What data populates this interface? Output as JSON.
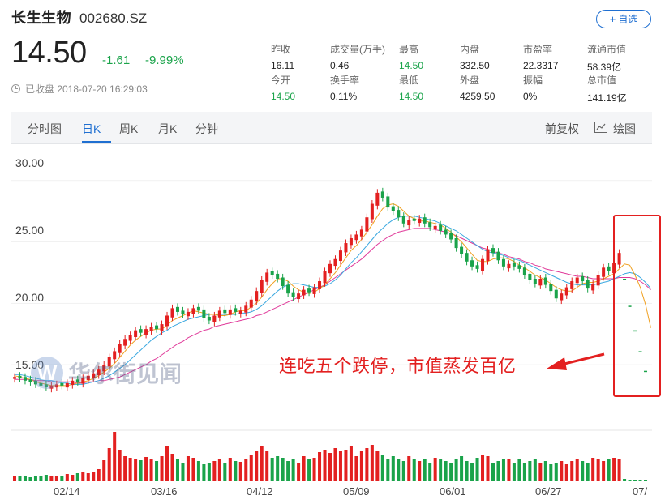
{
  "header": {
    "name": "长生生物",
    "code": "002680.SZ",
    "add_button": "自选",
    "price": "14.50",
    "change": "-1.61",
    "change_pct": "-9.99%",
    "closed_label": "已收盘 2018-07-20 16:29:03"
  },
  "stats": [
    {
      "label": "昨收",
      "value": "16.11",
      "color": "#222222"
    },
    {
      "label": "成交量(万手)",
      "value": "0.46",
      "color": "#222222"
    },
    {
      "label": "最高",
      "value": "14.50",
      "color": "#1aa34a"
    },
    {
      "label": "内盘",
      "value": "332.50",
      "color": "#222222"
    },
    {
      "label": "市盈率",
      "value": "22.3317",
      "color": "#222222"
    },
    {
      "label": "流通市值",
      "value": "58.39亿",
      "color": "#222222"
    },
    {
      "label": "今开",
      "value": "14.50",
      "color": "#1aa34a"
    },
    {
      "label": "换手率",
      "value": "0.11%",
      "color": "#222222"
    },
    {
      "label": "最低",
      "value": "14.50",
      "color": "#1aa34a"
    },
    {
      "label": "外盘",
      "value": "4259.50",
      "color": "#222222"
    },
    {
      "label": "振幅",
      "value": "0%",
      "color": "#222222"
    },
    {
      "label": "总市值",
      "value": "141.19亿",
      "color": "#222222"
    }
  ],
  "tabs": [
    "分时图",
    "日K",
    "周K",
    "月K",
    "分钟"
  ],
  "active_tab": "日K",
  "right_tabs": {
    "adjust": "前复权",
    "draw": "绘图"
  },
  "annotation": "连吃五个跌停，市值蒸发百亿",
  "watermark": {
    "letter": "W",
    "text": "华尔街见闻"
  },
  "colors": {
    "up": "#e32020",
    "down": "#1aa34a",
    "accent": "#1f6fd1",
    "ma5": "#f0a020",
    "ma10": "#3aa8e0",
    "ma20": "#e03a9a"
  },
  "chart_data": {
    "type": "candlestick",
    "y_ticks": [
      "30.00",
      "25.00",
      "20.00",
      "15.00"
    ],
    "x_ticks": [
      "02/14",
      "03/16",
      "04/12",
      "05/09",
      "06/01",
      "06/27",
      "07/"
    ],
    "ylim": [
      12.5,
      31.5
    ],
    "closes": [
      14.0,
      13.9,
      13.7,
      13.6,
      13.4,
      13.3,
      13.2,
      13.3,
      13.4,
      13.3,
      13.5,
      13.7,
      13.6,
      13.9,
      14.1,
      14.3,
      14.6,
      15.0,
      15.6,
      16.1,
      16.7,
      17.1,
      17.4,
      17.8,
      17.6,
      17.9,
      18.1,
      17.9,
      18.3,
      19.0,
      19.6,
      19.3,
      19.1,
      19.3,
      19.6,
      19.4,
      18.8,
      18.6,
      19.0,
      19.4,
      19.2,
      19.5,
      19.3,
      19.4,
      19.8,
      20.3,
      21.0,
      21.9,
      22.5,
      22.3,
      22.0,
      21.4,
      20.8,
      20.5,
      20.8,
      21.1,
      20.9,
      21.3,
      21.8,
      22.6,
      23.2,
      23.6,
      24.3,
      24.9,
      25.3,
      25.6,
      26.0,
      27.0,
      28.1,
      29.0,
      28.6,
      27.8,
      27.5,
      27.0,
      26.5,
      26.8,
      26.7,
      26.9,
      26.5,
      26.2,
      26.3,
      25.9,
      25.6,
      25.2,
      24.5,
      24.0,
      23.4,
      23.0,
      22.8,
      23.6,
      24.4,
      24.1,
      23.5,
      23.0,
      23.2,
      23.0,
      22.8,
      22.3,
      21.9,
      21.6,
      22.0,
      21.5,
      21.0,
      20.4,
      20.8,
      21.3,
      21.8,
      22.1,
      21.8,
      21.2,
      21.6,
      22.3,
      22.9,
      22.6,
      23.3,
      24.1,
      22.0,
      19.8,
      17.8,
      16.1,
      14.5
    ],
    "volumes": [
      6,
      5,
      5,
      4,
      5,
      6,
      7,
      6,
      5,
      6,
      8,
      7,
      9,
      10,
      9,
      11,
      14,
      25,
      40,
      60,
      38,
      30,
      28,
      27,
      25,
      29,
      26,
      24,
      30,
      42,
      33,
      26,
      22,
      30,
      28,
      24,
      20,
      22,
      24,
      26,
      22,
      28,
      24,
      23,
      26,
      32,
      36,
      42,
      36,
      28,
      30,
      28,
      24,
      26,
      22,
      30,
      26,
      28,
      35,
      38,
      34,
      40,
      36,
      38,
      42,
      30,
      36,
      40,
      44,
      36,
      32,
      26,
      30,
      26,
      24,
      30,
      26,
      24,
      26,
      22,
      28,
      26,
      24,
      22,
      26,
      30,
      24,
      22,
      28,
      32,
      30,
      22,
      24,
      26,
      26,
      22,
      26,
      22,
      24,
      26,
      22,
      24,
      20,
      22,
      24,
      20,
      24,
      26,
      24,
      22,
      28,
      26,
      24,
      26,
      28,
      26,
      2,
      1,
      1,
      1,
      1
    ],
    "ma5": [
      14.1,
      14.0,
      13.9,
      13.8,
      13.6,
      13.5,
      13.4,
      13.3,
      13.3,
      13.3,
      13.3,
      13.4,
      13.5,
      13.6,
      13.7,
      13.9,
      14.1,
      14.4,
      14.7,
      15.1,
      15.6,
      16.1,
      16.6,
      17.0,
      17.3,
      17.6,
      17.8,
      17.9,
      17.9,
      18.2,
      18.6,
      18.8,
      19.0,
      19.2,
      19.4,
      19.3,
      19.2,
      19.1,
      19.1,
      19.0,
      19.0,
      19.1,
      19.3,
      19.4,
      19.4,
      19.7,
      20.0,
      20.5,
      21.1,
      21.6,
      22.0,
      22.0,
      21.8,
      21.4,
      21.1,
      20.9,
      20.8,
      20.9,
      21.2,
      21.5,
      22.0,
      22.5,
      23.1,
      23.7,
      24.3,
      24.7,
      25.2,
      25.8,
      26.4,
      27.1,
      27.7,
      28.0,
      28.1,
      27.9,
      27.5,
      27.1,
      26.9,
      26.7,
      26.7,
      26.6,
      26.5,
      26.4,
      26.1,
      25.8,
      25.4,
      25.0,
      24.5,
      24.0,
      23.5,
      23.4,
      23.4,
      23.6,
      23.7,
      23.7,
      23.6,
      23.4,
      23.1,
      22.9,
      22.6,
      22.3,
      22.1,
      21.9,
      21.6,
      21.3,
      21.1,
      21.0,
      21.0,
      21.3,
      21.6,
      21.7,
      21.7,
      21.8,
      22.0,
      22.2,
      22.4,
      22.8,
      23.2,
      23.1,
      22.3,
      21.3,
      19.9,
      18.0
    ],
    "ma10": [
      14.2,
      14.2,
      14.1,
      14.0,
      13.9,
      13.8,
      13.7,
      13.7,
      13.6,
      13.5,
      13.5,
      13.4,
      13.4,
      13.4,
      13.5,
      13.6,
      13.7,
      13.9,
      14.1,
      14.4,
      14.7,
      15.0,
      15.4,
      15.8,
      16.2,
      16.6,
      17.0,
      17.3,
      17.6,
      17.8,
      18.1,
      18.3,
      18.5,
      18.7,
      18.8,
      18.9,
      19.0,
      19.1,
      19.1,
      19.1,
      19.1,
      19.1,
      19.1,
      19.2,
      19.2,
      19.3,
      19.5,
      19.8,
      20.2,
      20.6,
      21.0,
      21.3,
      21.5,
      21.6,
      21.6,
      21.5,
      21.4,
      21.3,
      21.3,
      21.4,
      21.6,
      21.9,
      22.3,
      22.8,
      23.3,
      23.7,
      24.2,
      24.7,
      25.2,
      25.7,
      26.1,
      26.5,
      26.8,
      27.0,
      27.1,
      27.1,
      27.1,
      27.0,
      26.9,
      26.8,
      26.7,
      26.5,
      26.3,
      26.1,
      25.9,
      25.6,
      25.3,
      25.0,
      24.7,
      24.4,
      24.2,
      24.1,
      24.0,
      23.9,
      23.7,
      23.6,
      23.5,
      23.3,
      23.1,
      22.9,
      22.7,
      22.5,
      22.3,
      22.1,
      21.9,
      21.7,
      21.6,
      21.5,
      21.5,
      21.5,
      21.5,
      21.6,
      21.7,
      21.8,
      22.0,
      22.2,
      22.4,
      22.5,
      22.4,
      22.1,
      21.7,
      21.2
    ],
    "ma20": [
      13.8,
      13.8,
      13.8,
      13.8,
      13.7,
      13.7,
      13.7,
      13.6,
      13.6,
      13.6,
      13.6,
      13.6,
      13.5,
      13.5,
      13.6,
      13.6,
      13.7,
      13.7,
      13.8,
      13.9,
      14.0,
      14.2,
      14.4,
      14.6,
      14.8,
      15.0,
      15.3,
      15.5,
      15.8,
      16.1,
      16.4,
      16.7,
      16.9,
      17.2,
      17.4,
      17.6,
      17.8,
      17.9,
      18.1,
      18.2,
      18.3,
      18.4,
      18.5,
      18.6,
      18.7,
      18.8,
      19.0,
      19.1,
      19.3,
      19.5,
      19.7,
      19.9,
      20.1,
      20.3,
      20.5,
      20.7,
      20.9,
      21.1,
      21.3,
      21.5,
      21.8,
      22.1,
      22.4,
      22.7,
      23.0,
      23.3,
      23.6,
      24.0,
      24.4,
      24.8,
      25.1,
      25.4,
      25.6,
      25.8,
      25.9,
      26.0,
      26.1,
      26.1,
      26.1,
      26.1,
      26.0,
      25.9,
      25.8,
      25.7,
      25.5,
      25.3,
      25.1,
      24.9,
      24.7,
      24.5,
      24.4,
      24.2,
      24.1,
      24.0,
      23.8,
      23.7,
      23.6,
      23.4,
      23.3,
      23.1,
      23.0,
      22.8,
      22.7,
      22.6,
      22.5,
      22.4,
      22.3,
      22.2,
      22.2,
      22.1,
      22.0,
      22.0,
      22.0,
      22.0,
      22.0,
      22.1,
      22.1,
      22.1,
      22.0,
      21.8,
      21.5,
      21.1
    ]
  }
}
